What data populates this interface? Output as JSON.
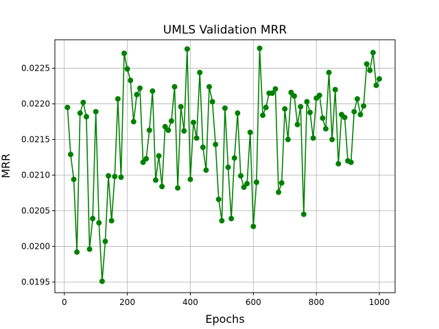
{
  "chart_data": {
    "type": "line",
    "title": "UMLS Validation MRR",
    "xlabel": "Epochs",
    "ylabel": "MRR",
    "xlim": [
      -30,
      1050
    ],
    "ylim": [
      0.01935,
      0.0229
    ],
    "xticks": [
      0,
      200,
      400,
      600,
      800,
      1000
    ],
    "xtick_labels": [
      "0",
      "200",
      "400",
      "600",
      "800",
      "1000"
    ],
    "yticks": [
      0.0195,
      0.02,
      0.0205,
      0.021,
      0.0215,
      0.022,
      0.0225
    ],
    "ytick_labels": [
      "0.0195",
      "0.0200",
      "0.0205",
      "0.0210",
      "0.0215",
      "0.0220",
      "0.0225"
    ],
    "grid": true,
    "series": [
      {
        "color": "#008000",
        "marker": "circle",
        "x": [
          10,
          20,
          30,
          40,
          50,
          60,
          70,
          80,
          90,
          100,
          110,
          120,
          130,
          140,
          150,
          160,
          170,
          180,
          190,
          200,
          210,
          220,
          230,
          240,
          250,
          260,
          270,
          280,
          290,
          300,
          310,
          320,
          330,
          340,
          350,
          360,
          370,
          380,
          390,
          400,
          410,
          420,
          430,
          440,
          450,
          460,
          470,
          480,
          490,
          500,
          510,
          520,
          530,
          540,
          550,
          560,
          570,
          580,
          590,
          600,
          610,
          620,
          630,
          640,
          650,
          660,
          670,
          680,
          690,
          700,
          710,
          720,
          730,
          740,
          750,
          760,
          770,
          780,
          790,
          800,
          810,
          820,
          830,
          840,
          850,
          860,
          870,
          880,
          890,
          900,
          910,
          920,
          930,
          940,
          950,
          960,
          970,
          980,
          990,
          1000
        ],
        "values": [
          0.02195,
          0.02129,
          0.02094,
          0.01992,
          0.02187,
          0.02202,
          0.02182,
          0.01996,
          0.02039,
          0.02189,
          0.02033,
          0.01951,
          0.02007,
          0.02099,
          0.02036,
          0.02098,
          0.02207,
          0.02097,
          0.02271,
          0.02249,
          0.02233,
          0.02175,
          0.02213,
          0.02222,
          0.02118,
          0.02123,
          0.02163,
          0.02218,
          0.02093,
          0.02127,
          0.02084,
          0.02168,
          0.02163,
          0.02176,
          0.02224,
          0.02082,
          0.02196,
          0.02162,
          0.02277,
          0.02094,
          0.02174,
          0.02152,
          0.02244,
          0.02139,
          0.02107,
          0.02224,
          0.02203,
          0.02143,
          0.02066,
          0.02036,
          0.02194,
          0.02111,
          0.02039,
          0.02124,
          0.02187,
          0.02099,
          0.02083,
          0.02088,
          0.0216,
          0.02028,
          0.0209,
          0.02278,
          0.02184,
          0.02195,
          0.02215,
          0.02215,
          0.02221,
          0.02076,
          0.02089,
          0.02193,
          0.0215,
          0.02216,
          0.02211,
          0.02171,
          0.02196,
          0.02045,
          0.02203,
          0.02188,
          0.02152,
          0.02208,
          0.02212,
          0.0218,
          0.02165,
          0.02244,
          0.0215,
          0.0222,
          0.02116,
          0.02185,
          0.02181,
          0.0212,
          0.02118,
          0.02189,
          0.02207,
          0.02185,
          0.02197,
          0.02256,
          0.02247,
          0.02272,
          0.02226,
          0.02235
        ]
      }
    ]
  }
}
